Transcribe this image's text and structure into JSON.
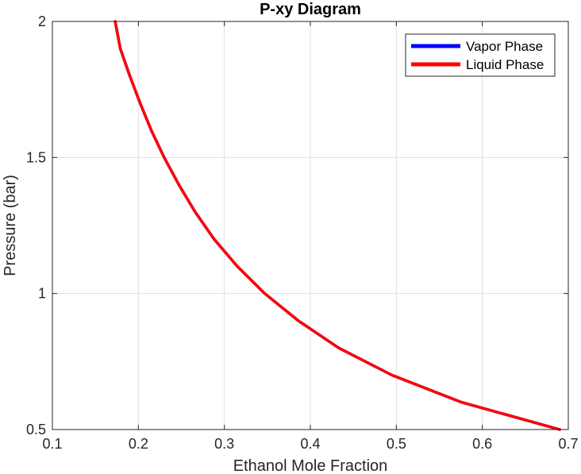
{
  "chart_data": {
    "type": "line",
    "title": "P-xy Diagram",
    "xlabel": "Ethanol Mole Fraction",
    "ylabel": "Pressure (bar)",
    "xlim": [
      0.1,
      0.7
    ],
    "ylim": [
      0.5,
      2
    ],
    "xticks": [
      0.1,
      0.2,
      0.3,
      0.4,
      0.5,
      0.6,
      0.7
    ],
    "yticks": [
      0.5,
      1,
      1.5,
      2
    ],
    "xtick_labels": [
      "0.1",
      "0.2",
      "0.3",
      "0.4",
      "0.5",
      "0.6",
      "0.7"
    ],
    "ytick_labels": [
      "0.5",
      "1",
      "1.5",
      "2"
    ],
    "grid": true,
    "legend_position": "top-right",
    "series": [
      {
        "name": "Vapor Phase",
        "color": "#0000ff",
        "x": [
          0.173,
          0.179,
          0.19,
          0.202,
          0.215,
          0.23,
          0.247,
          0.266,
          0.288,
          0.315,
          0.347,
          0.386,
          0.433,
          0.495,
          0.576,
          0.69
        ],
        "y": [
          2.0,
          1.9,
          1.8,
          1.7,
          1.6,
          1.5,
          1.4,
          1.3,
          1.2,
          1.1,
          1.0,
          0.9,
          0.8,
          0.7,
          0.6,
          0.5
        ]
      },
      {
        "name": "Liquid Phase",
        "color": "#ff0000",
        "x": [
          0.173,
          0.179,
          0.19,
          0.202,
          0.215,
          0.23,
          0.247,
          0.266,
          0.288,
          0.315,
          0.347,
          0.386,
          0.433,
          0.495,
          0.576,
          0.69
        ],
        "y": [
          2.0,
          1.9,
          1.8,
          1.7,
          1.6,
          1.5,
          1.4,
          1.3,
          1.2,
          1.1,
          1.0,
          0.9,
          0.8,
          0.7,
          0.6,
          0.5
        ]
      }
    ]
  }
}
